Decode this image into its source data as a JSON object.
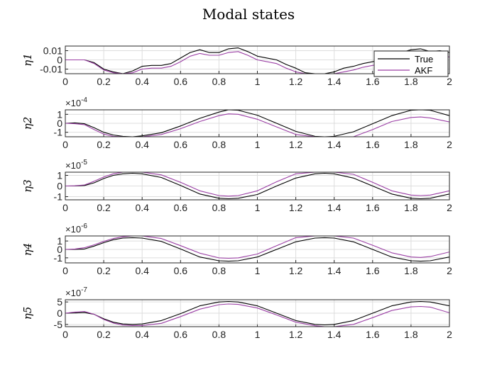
{
  "figure": {
    "title": "Modal states"
  },
  "colors": {
    "true": "#000000",
    "akf": "#9b3fa5",
    "grid": "#dddddd",
    "axis": "#262626"
  },
  "legend": {
    "entries": [
      "True",
      "AKF"
    ],
    "placement": "top-right (first subplot)"
  },
  "chart_data": [
    {
      "type": "line",
      "ylabel": "η1",
      "exponent": "",
      "xlim": [
        0,
        2
      ],
      "ylim": [
        -0.015,
        0.015
      ],
      "xticks": [
        "0",
        "0.2",
        "0.4",
        "0.6",
        "0.8",
        "1",
        "1.2",
        "1.4",
        "1.6",
        "1.8",
        "2"
      ],
      "yticks": [
        {
          "v": 0.01,
          "t": "0.01"
        },
        {
          "v": 0,
          "t": "0"
        },
        {
          "v": -0.01,
          "t": "-0.01"
        }
      ],
      "grid": true,
      "series": [
        {
          "name": "True",
          "x": [
            0,
            0.05,
            0.1,
            0.15,
            0.2,
            0.25,
            0.3,
            0.35,
            0.4,
            0.45,
            0.5,
            0.55,
            0.6,
            0.65,
            0.7,
            0.75,
            0.8,
            0.85,
            0.9,
            0.95,
            1.0,
            1.05,
            1.1,
            1.15,
            1.2,
            1.25,
            1.3,
            1.35,
            1.4,
            1.45,
            1.5,
            1.55,
            1.6,
            1.65,
            1.7,
            1.75,
            1.8,
            1.85,
            1.9,
            1.95,
            2.0
          ],
          "y": [
            0,
            0,
            0,
            -0.003,
            -0.01,
            -0.013,
            -0.015,
            -0.012,
            -0.007,
            -0.006,
            -0.006,
            -0.004,
            0.002,
            0.008,
            0.011,
            0.008,
            0.008,
            0.012,
            0.013,
            0.009,
            0.004,
            0.002,
            0,
            -0.005,
            -0.009,
            -0.014,
            -0.015,
            -0.015,
            -0.013,
            -0.009,
            -0.007,
            -0.004,
            -0.002,
            0,
            0.003,
            0.008,
            0.011,
            0.012,
            0.009,
            0.01,
            0.008
          ]
        },
        {
          "name": "AKF",
          "x": [
            0,
            0.05,
            0.1,
            0.15,
            0.2,
            0.25,
            0.3,
            0.35,
            0.4,
            0.45,
            0.5,
            0.55,
            0.6,
            0.65,
            0.7,
            0.75,
            0.8,
            0.85,
            0.9,
            0.95,
            1.0,
            1.05,
            1.1,
            1.15,
            1.2,
            1.25,
            1.3,
            1.35,
            1.4,
            1.45,
            1.5,
            1.55,
            1.6,
            1.65,
            1.7,
            1.75,
            1.8,
            1.85,
            1.9,
            1.95,
            2.0
          ],
          "y": [
            0,
            0,
            0,
            -0.004,
            -0.011,
            -0.014,
            -0.015,
            -0.014,
            -0.01,
            -0.009,
            -0.009,
            -0.007,
            -0.002,
            0.004,
            0.007,
            0.005,
            0.005,
            0.008,
            0.009,
            0.005,
            0.0,
            -0.002,
            -0.004,
            -0.009,
            -0.013,
            -0.015,
            -0.015,
            -0.015,
            -0.015,
            -0.013,
            -0.011,
            -0.008,
            -0.006,
            -0.004,
            -0.001,
            0.004,
            0.007,
            0.008,
            0.005,
            0.006,
            0.003
          ]
        }
      ]
    },
    {
      "type": "line",
      "ylabel": "η2",
      "exponent": "×10-4",
      "xlim": [
        0,
        2
      ],
      "ylim": [
        -1.5,
        1.5
      ],
      "xticks": [
        "0",
        "0.2",
        "0.4",
        "0.6",
        "0.8",
        "1",
        "1.2",
        "1.4",
        "1.6",
        "1.8",
        "2"
      ],
      "yticks": [
        {
          "v": 1,
          "t": "1"
        },
        {
          "v": 0,
          "t": "0"
        },
        {
          "v": -1,
          "t": "-1"
        }
      ],
      "grid": true,
      "series": [
        {
          "name": "True",
          "x": [
            0,
            0.05,
            0.1,
            0.15,
            0.2,
            0.25,
            0.3,
            0.35,
            0.4,
            0.5,
            0.6,
            0.7,
            0.8,
            0.85,
            0.9,
            1.0,
            1.1,
            1.2,
            1.3,
            1.35,
            1.4,
            1.5,
            1.6,
            1.7,
            1.8,
            1.85,
            1.9,
            2.0
          ],
          "y": [
            0,
            0.05,
            -0.05,
            -0.5,
            -1.0,
            -1.3,
            -1.45,
            -1.5,
            -1.4,
            -1.05,
            -0.3,
            0.55,
            1.25,
            1.5,
            1.45,
            0.9,
            0.0,
            -0.9,
            -1.45,
            -1.5,
            -1.45,
            -0.95,
            -0.05,
            0.85,
            1.45,
            1.5,
            1.45,
            0.85
          ]
        },
        {
          "name": "AKF",
          "x": [
            0,
            0.05,
            0.1,
            0.15,
            0.2,
            0.25,
            0.3,
            0.35,
            0.4,
            0.5,
            0.6,
            0.7,
            0.8,
            0.85,
            0.9,
            1.0,
            1.1,
            1.2,
            1.3,
            1.35,
            1.4,
            1.5,
            1.6,
            1.7,
            1.8,
            1.85,
            1.9,
            2.0
          ],
          "y": [
            0,
            -0.05,
            -0.15,
            -0.7,
            -1.2,
            -1.45,
            -1.5,
            -1.5,
            -1.5,
            -1.25,
            -0.6,
            0.2,
            0.85,
            1.05,
            1.0,
            0.45,
            -0.4,
            -1.25,
            -1.5,
            -1.5,
            -1.5,
            -1.5,
            -0.7,
            0.2,
            0.65,
            0.7,
            0.6,
            0.15
          ]
        }
      ]
    },
    {
      "type": "line",
      "ylabel": "η3",
      "exponent": "×10-5",
      "xlim": [
        0,
        2
      ],
      "ylim": [
        -1.3,
        1.3
      ],
      "xticks": [
        "0",
        "0.2",
        "0.4",
        "0.6",
        "0.8",
        "1",
        "1.2",
        "1.4",
        "1.6",
        "1.8",
        "2"
      ],
      "yticks": [
        {
          "v": 1,
          "t": "1"
        },
        {
          "v": 0,
          "t": "0"
        },
        {
          "v": -1,
          "t": "-1"
        }
      ],
      "grid": true,
      "series": [
        {
          "name": "True",
          "x": [
            0,
            0.05,
            0.1,
            0.15,
            0.2,
            0.25,
            0.3,
            0.35,
            0.4,
            0.5,
            0.6,
            0.7,
            0.8,
            0.85,
            0.9,
            1.0,
            1.1,
            1.2,
            1.3,
            1.35,
            1.4,
            1.5,
            1.6,
            1.7,
            1.8,
            1.85,
            1.9,
            2.0
          ],
          "y": [
            0,
            0.01,
            0.05,
            0.3,
            0.7,
            1.0,
            1.15,
            1.2,
            1.15,
            0.8,
            0.05,
            -0.75,
            -1.15,
            -1.2,
            -1.15,
            -0.8,
            0.0,
            0.75,
            1.15,
            1.2,
            1.15,
            0.75,
            0.0,
            -0.75,
            -1.15,
            -1.2,
            -1.15,
            -0.75
          ]
        },
        {
          "name": "AKF",
          "x": [
            0,
            0.05,
            0.1,
            0.15,
            0.2,
            0.25,
            0.3,
            0.35,
            0.4,
            0.5,
            0.6,
            0.7,
            0.8,
            0.85,
            0.9,
            1.0,
            1.1,
            1.2,
            1.3,
            1.35,
            1.4,
            1.5,
            1.6,
            1.7,
            1.8,
            1.85,
            1.9,
            2.0
          ],
          "y": [
            0,
            0.02,
            0.1,
            0.45,
            0.85,
            1.15,
            1.3,
            1.3,
            1.3,
            1.05,
            0.35,
            -0.45,
            -0.9,
            -0.95,
            -0.9,
            -0.45,
            0.4,
            1.15,
            1.3,
            1.3,
            1.3,
            1.1,
            0.35,
            -0.45,
            -0.85,
            -0.9,
            -0.85,
            -0.45
          ]
        }
      ]
    },
    {
      "type": "line",
      "ylabel": "η4",
      "exponent": "×10-6",
      "xlim": [
        0,
        2
      ],
      "ylim": [
        -1.6,
        1.6
      ],
      "xticks": [
        "0",
        "0.2",
        "0.4",
        "0.6",
        "0.8",
        "1",
        "1.2",
        "1.4",
        "1.6",
        "1.8",
        "2"
      ],
      "yticks": [
        {
          "v": 1,
          "t": "1"
        },
        {
          "v": 0,
          "t": "0"
        },
        {
          "v": -1,
          "t": "-1"
        }
      ],
      "grid": true,
      "series": [
        {
          "name": "True",
          "x": [
            0,
            0.05,
            0.1,
            0.15,
            0.2,
            0.25,
            0.3,
            0.35,
            0.4,
            0.5,
            0.6,
            0.7,
            0.8,
            0.85,
            0.9,
            1.0,
            1.1,
            1.2,
            1.3,
            1.35,
            1.4,
            1.5,
            1.6,
            1.7,
            1.8,
            1.85,
            1.9,
            2.0
          ],
          "y": [
            0,
            0.01,
            0.05,
            0.4,
            0.8,
            1.15,
            1.35,
            1.4,
            1.35,
            0.95,
            0.05,
            -0.9,
            -1.35,
            -1.4,
            -1.35,
            -0.9,
            0.0,
            0.9,
            1.35,
            1.4,
            1.35,
            0.9,
            0.0,
            -0.9,
            -1.35,
            -1.4,
            -1.35,
            -0.9
          ]
        },
        {
          "name": "AKF",
          "x": [
            0,
            0.05,
            0.1,
            0.15,
            0.2,
            0.25,
            0.3,
            0.35,
            0.4,
            0.5,
            0.6,
            0.7,
            0.8,
            0.85,
            0.9,
            1.0,
            1.1,
            1.2,
            1.3,
            1.35,
            1.4,
            1.5,
            1.6,
            1.7,
            1.8,
            1.85,
            1.9,
            2.0
          ],
          "y": [
            0,
            0.05,
            0.2,
            0.55,
            0.95,
            1.3,
            1.5,
            1.6,
            1.6,
            1.3,
            0.45,
            -0.45,
            -1.0,
            -1.05,
            -1.0,
            -0.55,
            0.45,
            1.4,
            1.6,
            1.6,
            1.6,
            1.35,
            0.5,
            -0.4,
            -0.9,
            -0.95,
            -0.85,
            -0.3
          ]
        }
      ]
    },
    {
      "type": "line",
      "ylabel": "η5",
      "exponent": "×10-7",
      "xlim": [
        0,
        2
      ],
      "ylim": [
        -6,
        6
      ],
      "xticks": [
        "0",
        "0.2",
        "0.4",
        "0.6",
        "0.8",
        "1",
        "1.2",
        "1.4",
        "1.6",
        "1.8",
        "2"
      ],
      "yticks": [
        {
          "v": 5,
          "t": "5"
        },
        {
          "v": 0,
          "t": "0"
        },
        {
          "v": -5,
          "t": "-5"
        }
      ],
      "grid": true,
      "series": [
        {
          "name": "True",
          "x": [
            0,
            0.05,
            0.1,
            0.15,
            0.2,
            0.25,
            0.3,
            0.35,
            0.4,
            0.5,
            0.6,
            0.7,
            0.8,
            0.85,
            0.9,
            1.0,
            1.1,
            1.2,
            1.3,
            1.35,
            1.4,
            1.5,
            1.6,
            1.7,
            1.8,
            1.85,
            1.9,
            2.0
          ],
          "y": [
            0,
            0.1,
            0.3,
            -0.5,
            -2.5,
            -4.0,
            -4.8,
            -5.0,
            -4.8,
            -3.3,
            -0.2,
            3.3,
            5.0,
            5.2,
            5.0,
            3.3,
            0.0,
            -3.3,
            -5.0,
            -5.2,
            -5.0,
            -3.3,
            0.0,
            3.3,
            5.0,
            5.2,
            5.0,
            3.3
          ]
        },
        {
          "name": "AKF",
          "x": [
            0,
            0.05,
            0.1,
            0.15,
            0.2,
            0.25,
            0.3,
            0.35,
            0.4,
            0.5,
            0.6,
            0.7,
            0.8,
            0.85,
            0.9,
            1.0,
            1.1,
            1.2,
            1.3,
            1.35,
            1.4,
            1.5,
            1.6,
            1.7,
            1.8,
            1.85,
            1.9,
            2.0
          ],
          "y": [
            0,
            0.5,
            0.8,
            -0.5,
            -2.8,
            -4.4,
            -5.3,
            -5.5,
            -5.5,
            -4.5,
            -1.5,
            1.8,
            3.8,
            4.1,
            3.9,
            2.3,
            -0.8,
            -4.0,
            -5.6,
            -6.0,
            -6.0,
            -5.0,
            -2.0,
            1.2,
            2.8,
            3.0,
            2.7,
            0.2
          ]
        }
      ]
    }
  ]
}
